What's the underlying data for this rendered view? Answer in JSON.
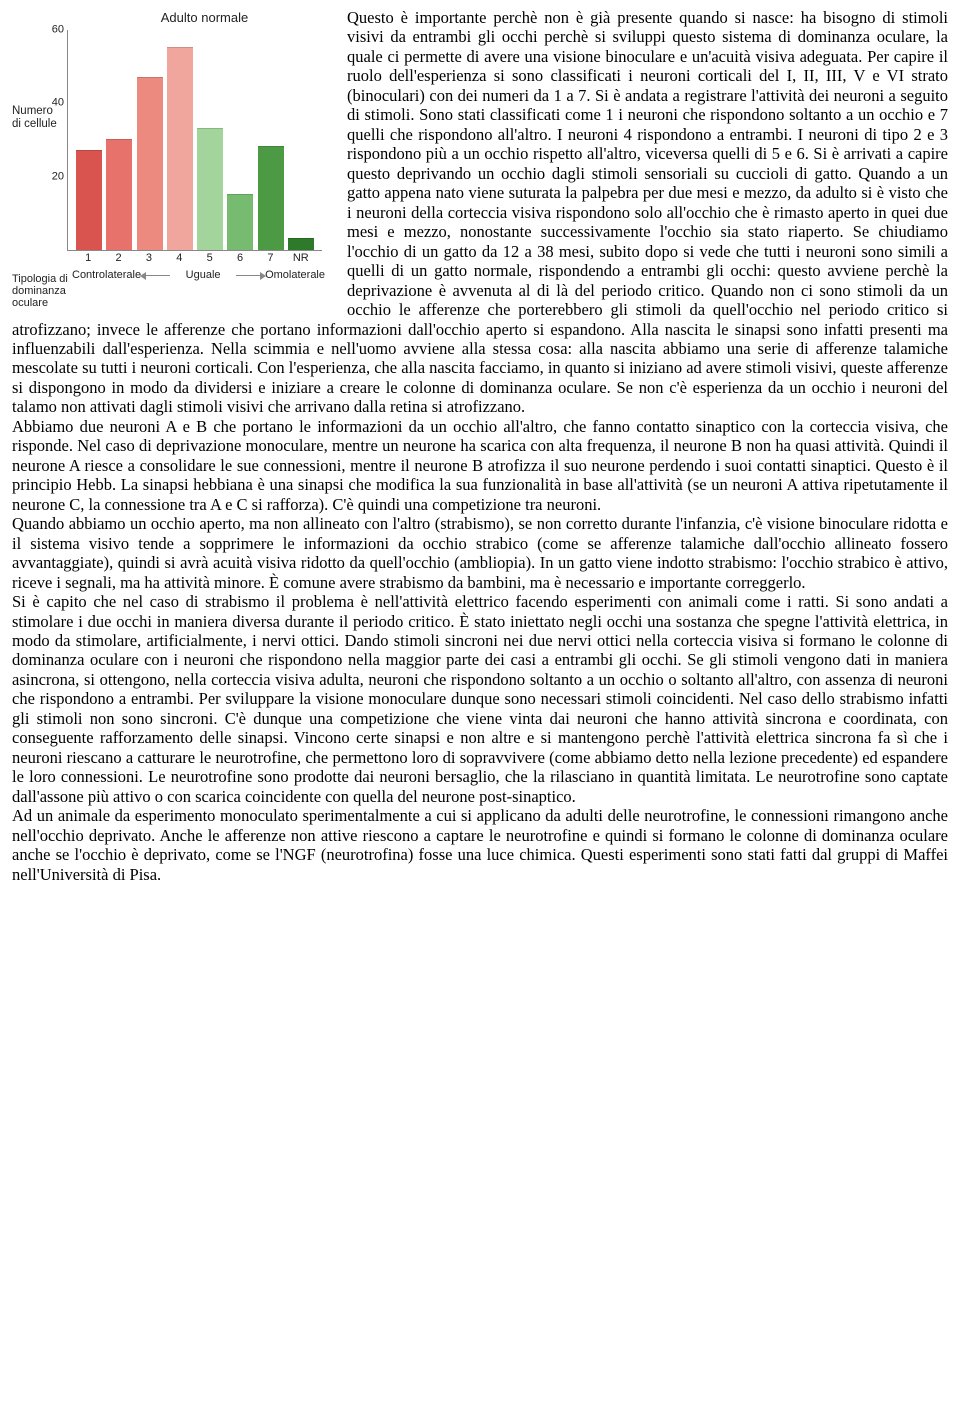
{
  "chart": {
    "type": "bar",
    "title": "Adulto normale",
    "ylabel": "Numero di cellule",
    "xlabel_left": "Tipologia di dominanza oculare",
    "ymax": 60,
    "yticks": [
      20,
      40,
      60
    ],
    "categories": [
      "1",
      "2",
      "3",
      "4",
      "5",
      "6",
      "7",
      "NR"
    ],
    "values": [
      27,
      30,
      47,
      55,
      33,
      15,
      28,
      3
    ],
    "bar_colors": [
      "#d9534f",
      "#e7726b",
      "#ec8a80",
      "#f0a69c",
      "#a3d49c",
      "#76bb6f",
      "#4c9b44",
      "#2c7a2a"
    ],
    "axis_labels": {
      "left": "Controlaterale",
      "mid": "Uguale",
      "right": "Omolaterale"
    },
    "background_color": "#ffffff",
    "axis_color": "#888888",
    "title_fontsize": 13,
    "label_fontsize": 11
  },
  "paragraphs": {
    "p1": "Questo è importante perchè non è già presente quando si nasce: ha bisogno di stimoli visivi da entrambi gli occhi perchè si sviluppi questo sistema di dominanza oculare, la quale ci permette di avere una visione binoculare e un'acuità visiva adeguata. Per capire il ruolo dell'esperienza si sono classificati i neuroni corticali del I, II, III, V e VI strato (binoculari) con dei numeri da 1 a 7. Si è andata a registrare l'attività dei neuroni a seguito di stimoli. Sono stati classificati come 1 i neuroni che rispondono soltanto a un occhio e 7 quelli che rispondono all'altro. I neuroni 4 rispondono a entrambi. I neuroni di tipo 2 e 3 rispondono più a un occhio rispetto all'altro, viceversa quelli di 5 e 6. Si è arrivati a capire questo deprivando un occhio dagli stimoli sensoriali su cuccioli di gatto. Quando a un gatto appena nato viene suturata la palpebra per due mesi e mezzo, da adulto si è visto che i neuroni della corteccia visiva rispondono solo all'occhio che è rimasto aperto in quei due mesi e mezzo, nonostante successivamente l'occhio sia stato riaperto. Se chiudiamo l'occhio di un gatto da 12 a 38 mesi, subito dopo si vede che tutti i neuroni sono simili a quelli di un gatto normale, rispondendo a entrambi gli occhi: questo avviene perchè la deprivazione è avvenuta al di là del periodo critico. Quando non ci sono stimoli da un occhio le afferenze che porterebbero gli stimoli da quell'occhio nel periodo critico si atrofizzano; invece le afferenze che portano informazioni dall'occhio aperto si espandono. Alla nascita le sinapsi sono infatti presenti ma influenzabili dall'esperienza. Nella scimmia e nell'uomo avviene alla stessa cosa: alla nascita abbiamo una serie di afferenze talamiche mescolate su tutti i neuroni corticali. Con l'esperienza, che alla nascita facciamo, in quanto si iniziano ad avere stimoli visivi, queste afferenze si dispongono in modo da dividersi e iniziare a creare le colonne di dominanza oculare. Se non c'è esperienza da un occhio i neuroni del talamo non attivati dagli stimoli visivi che arrivano dalla retina si atrofizzano.",
    "p2": "Abbiamo due neuroni A e B che portano le informazioni da un occhio all'altro, che fanno contatto sinaptico con la corteccia visiva, che risponde. Nel caso di deprivazione monoculare, mentre un neurone ha scarica con alta frequenza, il neurone B non ha quasi attività. Quindi il neurone A riesce a consolidare le sue connessioni, mentre il neurone B atrofizza il suo neurone perdendo i suoi contatti sinaptici. Questo è il principio Hebb. La sinapsi hebbiana è una sinapsi che modifica la sua funzionalità in base all'attività (se un neuroni A attiva ripetutamente il neurone C, la connessione tra A e C si rafforza). C'è quindi una competizione tra neuroni.",
    "p3": "Quando abbiamo un occhio aperto, ma non allineato con l'altro (strabismo), se non corretto durante l'infanzia, c'è visione binoculare ridotta e il sistema visivo tende a sopprimere le informazioni da occhio strabico (come se afferenze talamiche dall'occhio allineato fossero avvantaggiate), quindi si avrà acuità visiva ridotto da quell'occhio (ambliopia). In un gatto viene indotto strabismo: l'occhio strabico è attivo, riceve i segnali, ma ha attività minore. È comune avere strabismo da bambini, ma è necessario e importante correggerlo.",
    "p4": "Si è capito che nel caso di strabismo il problema è nell'attività elettrico facendo esperimenti con animali come i ratti. Si sono andati a stimolare i due occhi in maniera diversa durante il periodo critico. È stato iniettato negli occhi una sostanza che spegne l'attività elettrica, in modo da stimolare, artificialmente, i nervi ottici. Dando stimoli sincroni nei due nervi ottici nella corteccia visiva si formano le colonne di dominanza oculare con i neuroni che rispondono nella maggior parte dei casi a entrambi gli occhi. Se gli stimoli vengono dati in maniera asincrona, si ottengono, nella corteccia visiva adulta, neuroni che rispondono soltanto a un occhio o soltanto all'altro, con assenza di neuroni che rispondono a entrambi. Per sviluppare la visione monoculare dunque sono necessari stimoli coincidenti. Nel caso dello strabismo infatti gli stimoli non sono sincroni. C'è dunque una competizione che viene vinta dai neuroni che hanno attività sincrona e coordinata, con conseguente rafforzamento delle sinapsi. Vincono certe sinapsi e non altre e si mantengono perchè l'attività elettrica sincrona fa sì che i neuroni riescano a catturare le neurotrofine, che permettono loro di sopravvivere (come abbiamo detto nella lezione precedente) ed espandere le loro connessioni. Le neurotrofine sono prodotte dai neuroni bersaglio, che la rilasciano in quantità limitata. Le neurotrofine sono captate dall'assone più attivo o con scarica coincidente con quella del neurone post-sinaptico.",
    "p5": "Ad un animale da esperimento monoculato sperimentalmente a cui si applicano da adulti delle neurotrofine, le connessioni rimangono anche nell'occhio deprivato. Anche le afferenze non attive riescono a captare le neurotrofine e quindi si formano le colonne di dominanza oculare anche se l'occhio è deprivato, come se l'NGF (neurotrofina) fosse una luce chimica. Questi esperimenti sono stati fatti dal gruppi di Maffei nell'Università di Pisa."
  }
}
